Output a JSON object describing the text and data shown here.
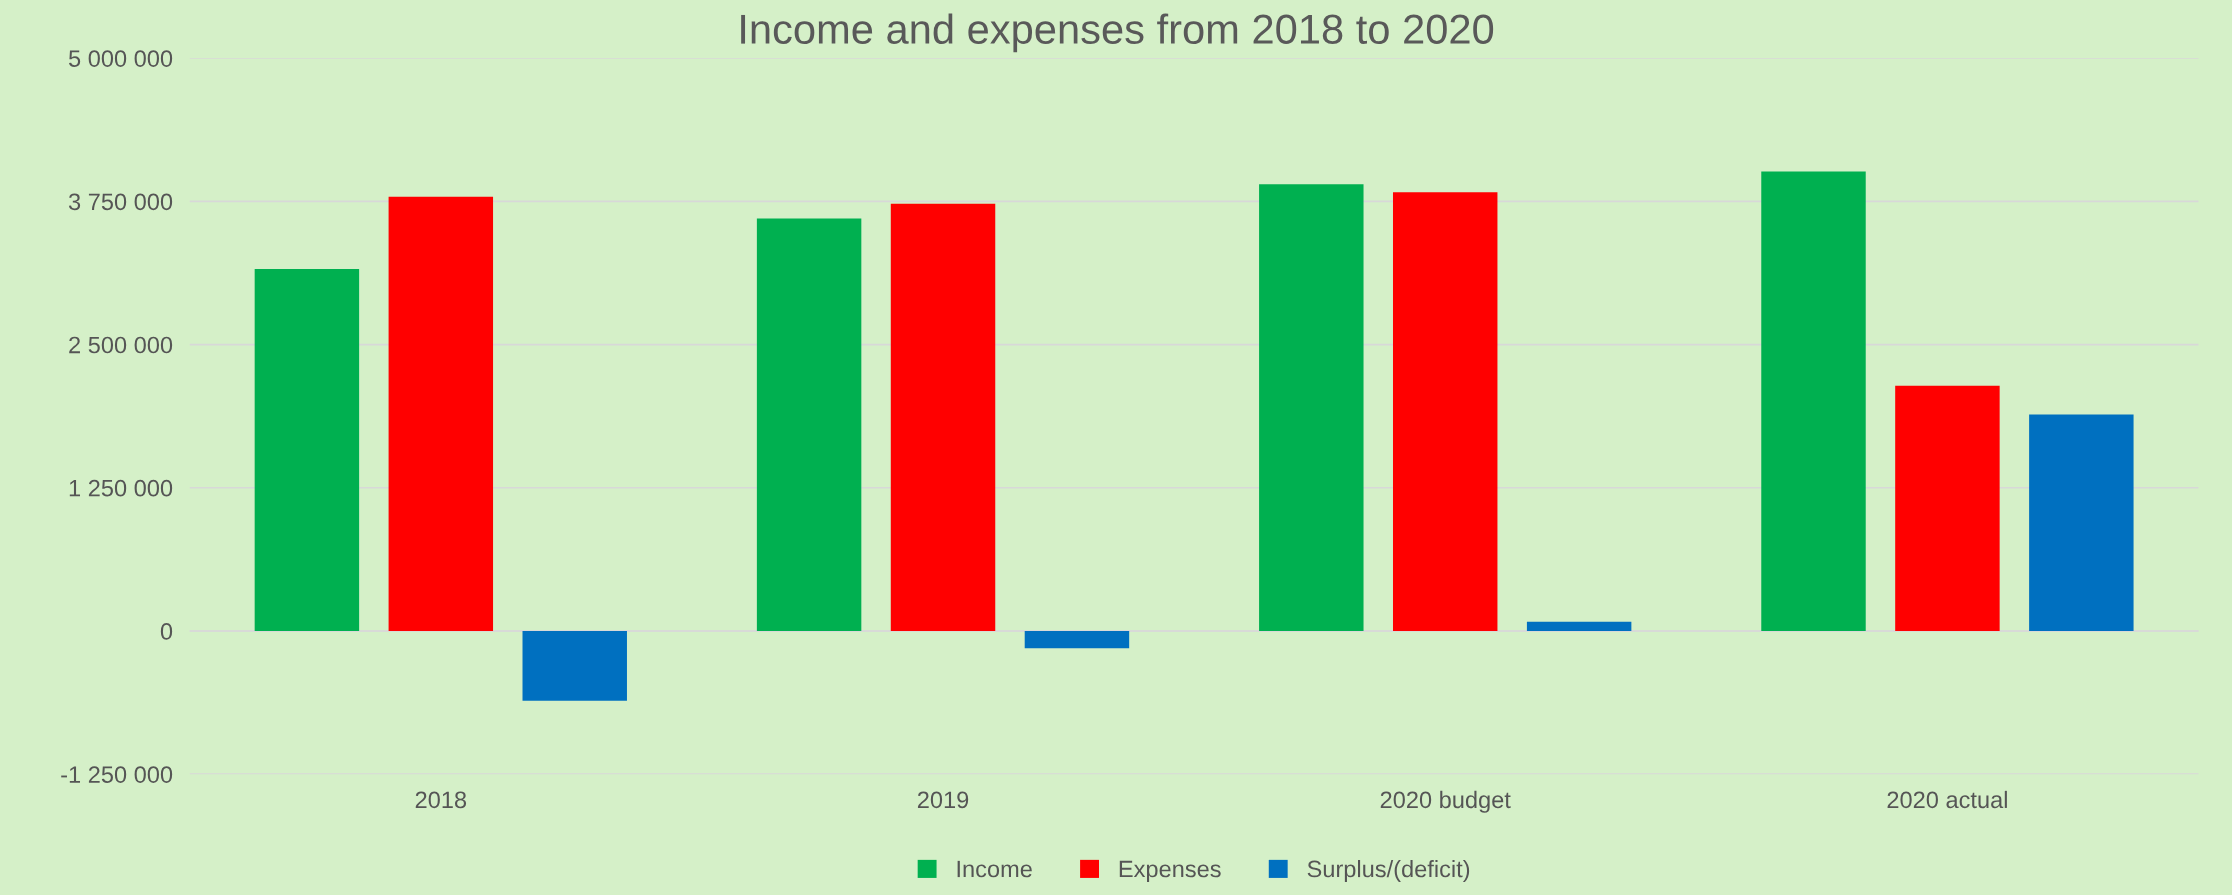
{
  "chart_data": {
    "type": "bar",
    "title": "Income and expenses from 2018 to 2020",
    "categories": [
      "2018",
      "2019",
      "2020 budget",
      "2020 actual"
    ],
    "series": [
      {
        "name": "Income",
        "color": "#00b050",
        "values": [
          3160000,
          3600000,
          3900000,
          4010000
        ]
      },
      {
        "name": "Expenses",
        "color": "#ff0000",
        "values": [
          3790000,
          3730000,
          3830000,
          2140000
        ]
      },
      {
        "name": "Surplus/(deficit)",
        "color": "#0070c0",
        "values": [
          -610000,
          -150000,
          80000,
          1890000
        ]
      }
    ],
    "ylim": [
      -1250000,
      5000000
    ],
    "yticks": [
      {
        "value": -1250000,
        "label": "-1 250 000"
      },
      {
        "value": 0,
        "label": "0"
      },
      {
        "value": 1250000,
        "label": "1 250 000"
      },
      {
        "value": 2500000,
        "label": "2 500 000"
      },
      {
        "value": 3750000,
        "label": "3 750 000"
      },
      {
        "value": 5000000,
        "label": "5 000 000"
      }
    ],
    "grid": "y",
    "legend": "bottom"
  }
}
